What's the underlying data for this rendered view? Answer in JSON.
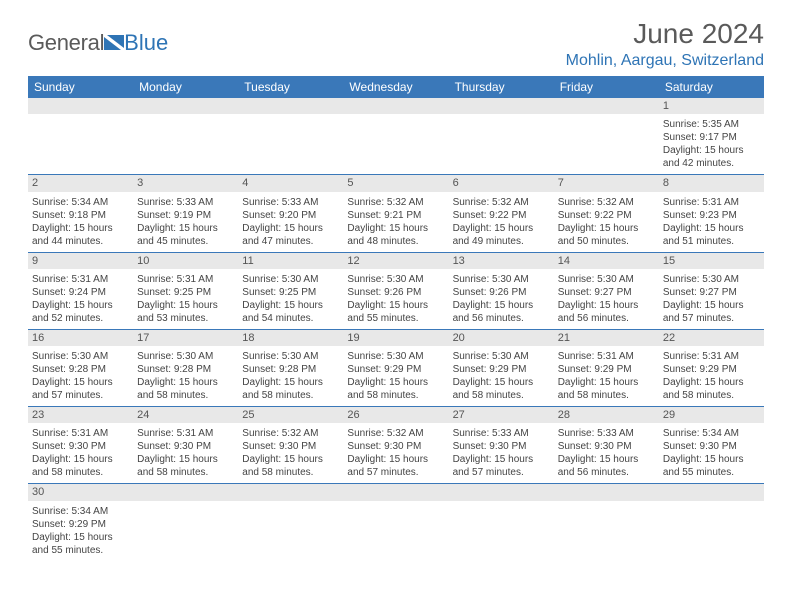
{
  "logo": {
    "text1": "General",
    "text2": "Blue",
    "triangle_color": "#2e74b5"
  },
  "title": "June 2024",
  "location": "Mohlin, Aargau, Switzerland",
  "colors": {
    "header_bg": "#3a78b9",
    "accent": "#2e74b5",
    "daynum_bg": "#e8e8e8",
    "text": "#444444"
  },
  "font": {
    "family": "Arial",
    "daynum_size": 11,
    "cell_size": 10,
    "title_size": 28,
    "loc_size": 16,
    "th_size": 12
  },
  "weekdays": [
    "Sunday",
    "Monday",
    "Tuesday",
    "Wednesday",
    "Thursday",
    "Friday",
    "Saturday"
  ],
  "weeks": [
    [
      null,
      null,
      null,
      null,
      null,
      null,
      {
        "d": "1",
        "sr": "Sunrise: 5:35 AM",
        "ss": "Sunset: 9:17 PM",
        "dl1": "Daylight: 15 hours",
        "dl2": "and 42 minutes."
      }
    ],
    [
      {
        "d": "2",
        "sr": "Sunrise: 5:34 AM",
        "ss": "Sunset: 9:18 PM",
        "dl1": "Daylight: 15 hours",
        "dl2": "and 44 minutes."
      },
      {
        "d": "3",
        "sr": "Sunrise: 5:33 AM",
        "ss": "Sunset: 9:19 PM",
        "dl1": "Daylight: 15 hours",
        "dl2": "and 45 minutes."
      },
      {
        "d": "4",
        "sr": "Sunrise: 5:33 AM",
        "ss": "Sunset: 9:20 PM",
        "dl1": "Daylight: 15 hours",
        "dl2": "and 47 minutes."
      },
      {
        "d": "5",
        "sr": "Sunrise: 5:32 AM",
        "ss": "Sunset: 9:21 PM",
        "dl1": "Daylight: 15 hours",
        "dl2": "and 48 minutes."
      },
      {
        "d": "6",
        "sr": "Sunrise: 5:32 AM",
        "ss": "Sunset: 9:22 PM",
        "dl1": "Daylight: 15 hours",
        "dl2": "and 49 minutes."
      },
      {
        "d": "7",
        "sr": "Sunrise: 5:32 AM",
        "ss": "Sunset: 9:22 PM",
        "dl1": "Daylight: 15 hours",
        "dl2": "and 50 minutes."
      },
      {
        "d": "8",
        "sr": "Sunrise: 5:31 AM",
        "ss": "Sunset: 9:23 PM",
        "dl1": "Daylight: 15 hours",
        "dl2": "and 51 minutes."
      }
    ],
    [
      {
        "d": "9",
        "sr": "Sunrise: 5:31 AM",
        "ss": "Sunset: 9:24 PM",
        "dl1": "Daylight: 15 hours",
        "dl2": "and 52 minutes."
      },
      {
        "d": "10",
        "sr": "Sunrise: 5:31 AM",
        "ss": "Sunset: 9:25 PM",
        "dl1": "Daylight: 15 hours",
        "dl2": "and 53 minutes."
      },
      {
        "d": "11",
        "sr": "Sunrise: 5:30 AM",
        "ss": "Sunset: 9:25 PM",
        "dl1": "Daylight: 15 hours",
        "dl2": "and 54 minutes."
      },
      {
        "d": "12",
        "sr": "Sunrise: 5:30 AM",
        "ss": "Sunset: 9:26 PM",
        "dl1": "Daylight: 15 hours",
        "dl2": "and 55 minutes."
      },
      {
        "d": "13",
        "sr": "Sunrise: 5:30 AM",
        "ss": "Sunset: 9:26 PM",
        "dl1": "Daylight: 15 hours",
        "dl2": "and 56 minutes."
      },
      {
        "d": "14",
        "sr": "Sunrise: 5:30 AM",
        "ss": "Sunset: 9:27 PM",
        "dl1": "Daylight: 15 hours",
        "dl2": "and 56 minutes."
      },
      {
        "d": "15",
        "sr": "Sunrise: 5:30 AM",
        "ss": "Sunset: 9:27 PM",
        "dl1": "Daylight: 15 hours",
        "dl2": "and 57 minutes."
      }
    ],
    [
      {
        "d": "16",
        "sr": "Sunrise: 5:30 AM",
        "ss": "Sunset: 9:28 PM",
        "dl1": "Daylight: 15 hours",
        "dl2": "and 57 minutes."
      },
      {
        "d": "17",
        "sr": "Sunrise: 5:30 AM",
        "ss": "Sunset: 9:28 PM",
        "dl1": "Daylight: 15 hours",
        "dl2": "and 58 minutes."
      },
      {
        "d": "18",
        "sr": "Sunrise: 5:30 AM",
        "ss": "Sunset: 9:28 PM",
        "dl1": "Daylight: 15 hours",
        "dl2": "and 58 minutes."
      },
      {
        "d": "19",
        "sr": "Sunrise: 5:30 AM",
        "ss": "Sunset: 9:29 PM",
        "dl1": "Daylight: 15 hours",
        "dl2": "and 58 minutes."
      },
      {
        "d": "20",
        "sr": "Sunrise: 5:30 AM",
        "ss": "Sunset: 9:29 PM",
        "dl1": "Daylight: 15 hours",
        "dl2": "and 58 minutes."
      },
      {
        "d": "21",
        "sr": "Sunrise: 5:31 AM",
        "ss": "Sunset: 9:29 PM",
        "dl1": "Daylight: 15 hours",
        "dl2": "and 58 minutes."
      },
      {
        "d": "22",
        "sr": "Sunrise: 5:31 AM",
        "ss": "Sunset: 9:29 PM",
        "dl1": "Daylight: 15 hours",
        "dl2": "and 58 minutes."
      }
    ],
    [
      {
        "d": "23",
        "sr": "Sunrise: 5:31 AM",
        "ss": "Sunset: 9:30 PM",
        "dl1": "Daylight: 15 hours",
        "dl2": "and 58 minutes."
      },
      {
        "d": "24",
        "sr": "Sunrise: 5:31 AM",
        "ss": "Sunset: 9:30 PM",
        "dl1": "Daylight: 15 hours",
        "dl2": "and 58 minutes."
      },
      {
        "d": "25",
        "sr": "Sunrise: 5:32 AM",
        "ss": "Sunset: 9:30 PM",
        "dl1": "Daylight: 15 hours",
        "dl2": "and 58 minutes."
      },
      {
        "d": "26",
        "sr": "Sunrise: 5:32 AM",
        "ss": "Sunset: 9:30 PM",
        "dl1": "Daylight: 15 hours",
        "dl2": "and 57 minutes."
      },
      {
        "d": "27",
        "sr": "Sunrise: 5:33 AM",
        "ss": "Sunset: 9:30 PM",
        "dl1": "Daylight: 15 hours",
        "dl2": "and 57 minutes."
      },
      {
        "d": "28",
        "sr": "Sunrise: 5:33 AM",
        "ss": "Sunset: 9:30 PM",
        "dl1": "Daylight: 15 hours",
        "dl2": "and 56 minutes."
      },
      {
        "d": "29",
        "sr": "Sunrise: 5:34 AM",
        "ss": "Sunset: 9:30 PM",
        "dl1": "Daylight: 15 hours",
        "dl2": "and 55 minutes."
      }
    ],
    [
      {
        "d": "30",
        "sr": "Sunrise: 5:34 AM",
        "ss": "Sunset: 9:29 PM",
        "dl1": "Daylight: 15 hours",
        "dl2": "and 55 minutes."
      },
      null,
      null,
      null,
      null,
      null,
      null
    ]
  ]
}
